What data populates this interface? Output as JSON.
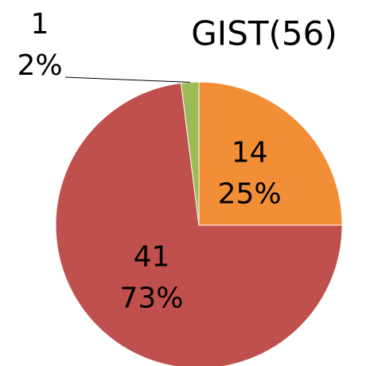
{
  "chart_data": {
    "type": "pie",
    "title": "GIST(56)",
    "categories": [
      "14",
      "41",
      "1"
    ],
    "values": [
      25,
      73,
      2
    ],
    "value_labels": [
      "25%",
      "73%",
      "2%"
    ],
    "colors": [
      "#f28e35",
      "#c0504d",
      "#9bbb59"
    ]
  }
}
